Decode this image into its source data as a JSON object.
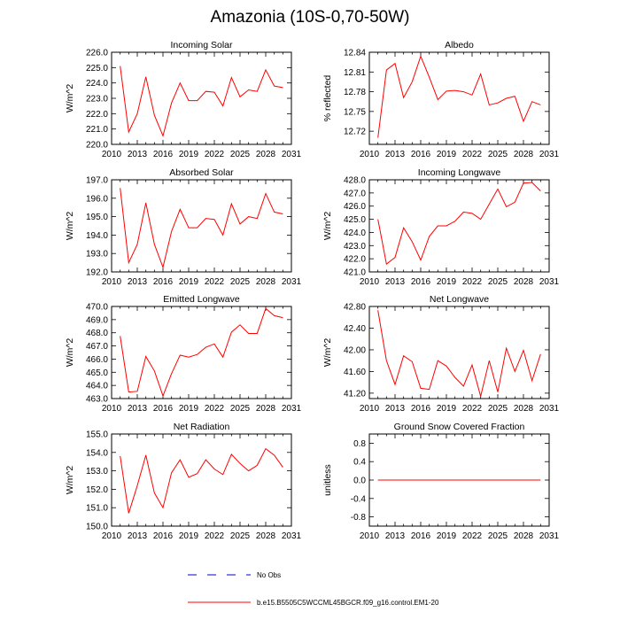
{
  "title": "Amazonia (10S-0,70-50W)",
  "colors": {
    "series": "#ff0000",
    "obs": "#0000cc",
    "axis": "#000000"
  },
  "legend": {
    "obs_label": "No Obs",
    "model_label": "b.e15.B5505C5WCCML45BGCR.f09_g16.control.EM1-20"
  },
  "chart_data": [
    {
      "type": "line",
      "title": "Incoming Solar",
      "ylabel": "W/m^2",
      "xlabel": "",
      "xlim": [
        2010,
        2031
      ],
      "xticks": [
        "2010",
        "2013",
        "2016",
        "2019",
        "2022",
        "2025",
        "2028",
        "2031"
      ],
      "ylim": [
        220.0,
        226.0
      ],
      "yticks": [
        "220.0",
        "221.0",
        "222.0",
        "223.0",
        "224.0",
        "225.0",
        "226.0"
      ],
      "x": [
        2011,
        2012,
        2013,
        2014,
        2015,
        2016,
        2017,
        2018,
        2019,
        2020,
        2021,
        2022,
        2023,
        2024,
        2025,
        2026,
        2027,
        2028,
        2029,
        2030
      ],
      "values": [
        225.1,
        220.8,
        222.0,
        224.4,
        221.9,
        220.55,
        222.7,
        224.0,
        222.85,
        222.85,
        223.45,
        223.4,
        222.5,
        224.35,
        223.1,
        223.55,
        223.45,
        224.85,
        223.8,
        223.7
      ]
    },
    {
      "type": "line",
      "title": "Albedo",
      "ylabel": "% reflected",
      "xlabel": "",
      "xlim": [
        2010,
        2031
      ],
      "xticks": [
        "2010",
        "2013",
        "2016",
        "2019",
        "2022",
        "2025",
        "2028",
        "2031"
      ],
      "ylim": [
        12.7,
        12.84
      ],
      "yticks": [
        "12.72",
        "12.75",
        "12.78",
        "12.81",
        "12.84"
      ],
      "x": [
        2011,
        2012,
        2013,
        2014,
        2015,
        2016,
        2017,
        2018,
        2019,
        2020,
        2021,
        2022,
        2023,
        2024,
        2025,
        2026,
        2027,
        2028,
        2029,
        2030
      ],
      "values": [
        12.71,
        12.813,
        12.823,
        12.771,
        12.795,
        12.834,
        12.802,
        12.768,
        12.781,
        12.782,
        12.78,
        12.775,
        12.807,
        12.76,
        12.763,
        12.77,
        12.773,
        12.735,
        12.765,
        12.76
      ]
    },
    {
      "type": "line",
      "title": "Absorbed Solar",
      "ylabel": "W/m^2",
      "xlabel": "",
      "xlim": [
        2010,
        2031
      ],
      "xticks": [
        "2010",
        "2013",
        "2016",
        "2019",
        "2022",
        "2025",
        "2028",
        "2031"
      ],
      "ylim": [
        192.0,
        197.0
      ],
      "yticks": [
        "192.0",
        "193.0",
        "194.0",
        "195.0",
        "196.0",
        "197.0"
      ],
      "x": [
        2011,
        2012,
        2013,
        2014,
        2015,
        2016,
        2017,
        2018,
        2019,
        2020,
        2021,
        2022,
        2023,
        2024,
        2025,
        2026,
        2027,
        2028,
        2029,
        2030
      ],
      "values": [
        196.55,
        192.5,
        193.5,
        195.75,
        193.5,
        192.25,
        194.2,
        195.4,
        194.4,
        194.4,
        194.9,
        194.85,
        194.0,
        195.7,
        194.6,
        195.0,
        194.9,
        196.25,
        195.25,
        195.15
      ]
    },
    {
      "type": "line",
      "title": "Incoming Longwave",
      "ylabel": "W/m^2",
      "xlabel": "",
      "xlim": [
        2010,
        2031
      ],
      "xticks": [
        "2010",
        "2013",
        "2016",
        "2019",
        "2022",
        "2025",
        "2028",
        "2031"
      ],
      "ylim": [
        421.0,
        428.0
      ],
      "yticks": [
        "421.0",
        "422.0",
        "423.0",
        "424.0",
        "425.0",
        "426.0",
        "427.0",
        "428.0"
      ],
      "x": [
        2011,
        2012,
        2013,
        2014,
        2015,
        2016,
        2017,
        2018,
        2019,
        2020,
        2021,
        2022,
        2023,
        2024,
        2025,
        2026,
        2027,
        2028,
        2029,
        2030
      ],
      "values": [
        425.0,
        421.6,
        422.1,
        424.35,
        423.3,
        421.9,
        423.7,
        424.5,
        424.5,
        424.85,
        425.55,
        425.45,
        425.0,
        426.15,
        427.3,
        425.95,
        426.3,
        427.75,
        427.8,
        427.15
      ]
    },
    {
      "type": "line",
      "title": "Emitted Longwave",
      "ylabel": "W/m^2",
      "xlabel": "",
      "xlim": [
        2010,
        2031
      ],
      "xticks": [
        "2010",
        "2013",
        "2016",
        "2019",
        "2022",
        "2025",
        "2028",
        "2031"
      ],
      "ylim": [
        463.0,
        470.0
      ],
      "yticks": [
        "463.0",
        "464.0",
        "465.0",
        "466.0",
        "467.0",
        "468.0",
        "469.0",
        "470.0"
      ],
      "x": [
        2011,
        2012,
        2013,
        2014,
        2015,
        2016,
        2017,
        2018,
        2019,
        2020,
        2021,
        2022,
        2023,
        2024,
        2025,
        2026,
        2027,
        2028,
        2029,
        2030
      ],
      "values": [
        467.75,
        463.5,
        463.55,
        466.2,
        465.1,
        463.2,
        464.9,
        466.3,
        466.15,
        466.35,
        466.9,
        467.15,
        466.15,
        468.05,
        468.6,
        467.95,
        467.95,
        469.85,
        469.3,
        469.15
      ]
    },
    {
      "type": "line",
      "title": "Net Longwave",
      "ylabel": "W/m^2",
      "xlabel": "",
      "xlim": [
        2010,
        2031
      ],
      "xticks": [
        "2010",
        "2013",
        "2016",
        "2019",
        "2022",
        "2025",
        "2028",
        "2031"
      ],
      "ylim": [
        41.1,
        42.8
      ],
      "yticks": [
        "41.20",
        "41.60",
        "42.00",
        "42.40",
        "42.80"
      ],
      "x": [
        2011,
        2012,
        2013,
        2014,
        2015,
        2016,
        2017,
        2018,
        2019,
        2020,
        2021,
        2022,
        2023,
        2024,
        2025,
        2026,
        2027,
        2028,
        2029,
        2030
      ],
      "values": [
        42.73,
        41.8,
        41.36,
        41.89,
        41.78,
        41.29,
        41.27,
        41.8,
        41.7,
        41.49,
        41.33,
        41.72,
        41.14,
        41.8,
        41.22,
        42.03,
        41.6,
        41.99,
        41.43,
        41.92
      ]
    },
    {
      "type": "line",
      "title": "Net Radiation",
      "ylabel": "W/m^2",
      "xlabel": "",
      "xlim": [
        2010,
        2031
      ],
      "xticks": [
        "2010",
        "2013",
        "2016",
        "2019",
        "2022",
        "2025",
        "2028",
        "2031"
      ],
      "ylim": [
        150.0,
        155.0
      ],
      "yticks": [
        "150.0",
        "151.0",
        "152.0",
        "153.0",
        "154.0",
        "155.0"
      ],
      "x": [
        2011,
        2012,
        2013,
        2014,
        2015,
        2016,
        2017,
        2018,
        2019,
        2020,
        2021,
        2022,
        2023,
        2024,
        2025,
        2026,
        2027,
        2028,
        2029,
        2030
      ],
      "values": [
        153.8,
        150.7,
        152.2,
        153.85,
        151.8,
        151.0,
        152.9,
        153.6,
        152.65,
        152.85,
        153.6,
        153.1,
        152.8,
        153.9,
        153.4,
        153.0,
        153.3,
        154.2,
        153.85,
        153.2
      ]
    },
    {
      "type": "line",
      "title": "Ground Snow Covered Fraction",
      "ylabel": "unitless",
      "xlabel": "",
      "xlim": [
        2010,
        2031
      ],
      "xticks": [
        "2010",
        "2013",
        "2016",
        "2019",
        "2022",
        "2025",
        "2028",
        "2031"
      ],
      "ylim": [
        -1.0,
        1.0
      ],
      "yticks": [
        "-0.8",
        "-0.4",
        "0.0",
        "0.4",
        "0.8"
      ],
      "x": [
        2011,
        2012,
        2013,
        2014,
        2015,
        2016,
        2017,
        2018,
        2019,
        2020,
        2021,
        2022,
        2023,
        2024,
        2025,
        2026,
        2027,
        2028,
        2029,
        2030
      ],
      "values": [
        0,
        0,
        0,
        0,
        0,
        0,
        0,
        0,
        0,
        0,
        0,
        0,
        0,
        0,
        0,
        0,
        0,
        0,
        0,
        0
      ]
    }
  ]
}
